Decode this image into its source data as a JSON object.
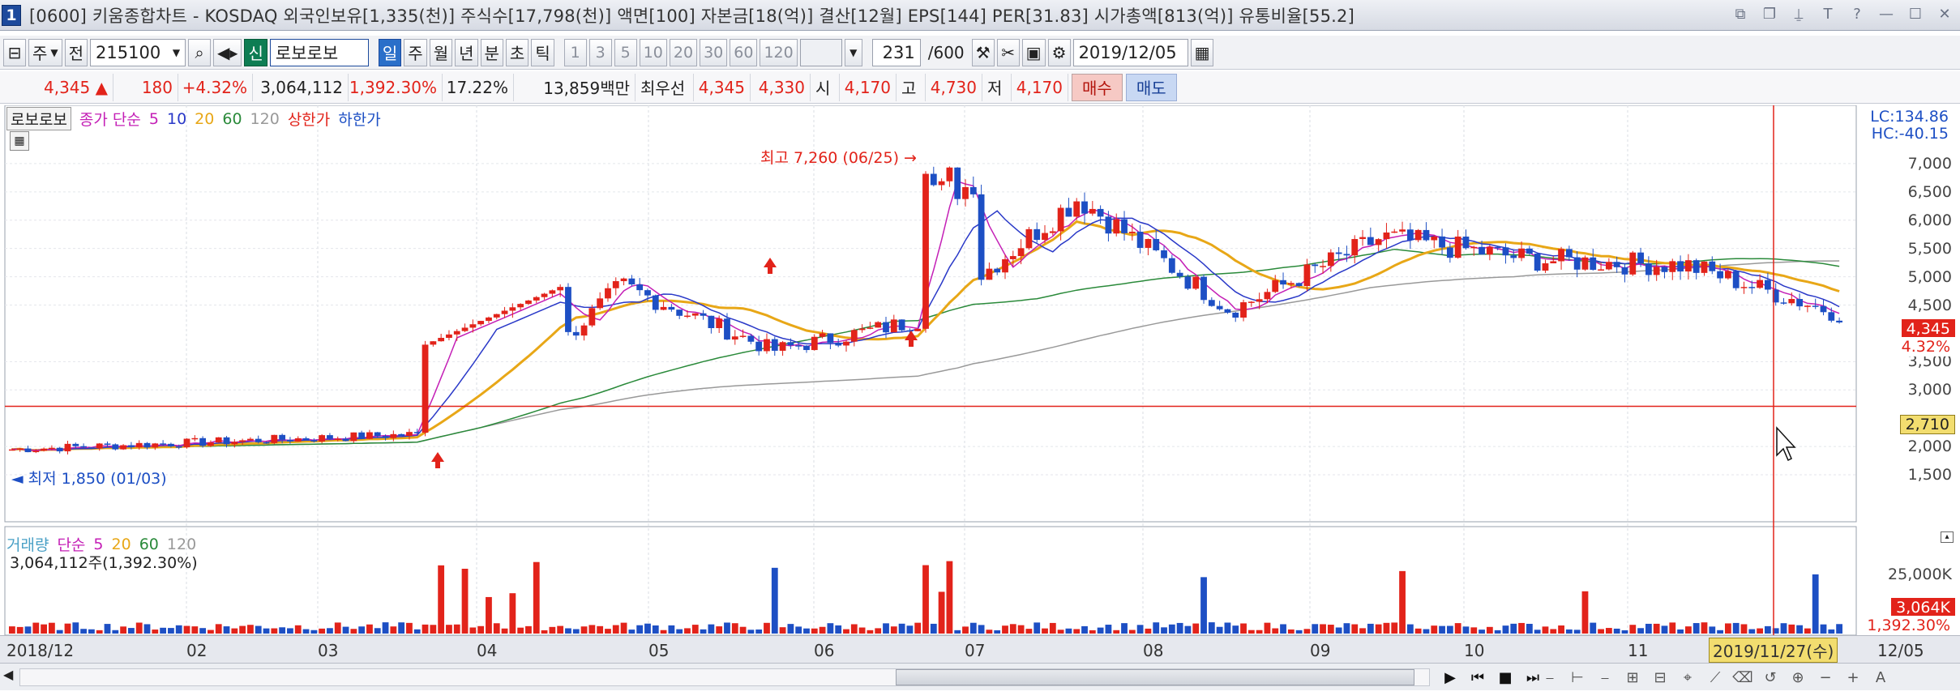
{
  "window": {
    "badge": "1",
    "title": "[0600] 키움종합차트 - KOSDAQ 외국인보유[1,335(천)] 주식수[17,798(천)] 액면[100] 자본금[18(억)] 결산[12월] EPS[144] PER[31.83] 시가총액[813(억)] 유통비율[55.2]"
  },
  "toolbar": {
    "period_sel": "주",
    "prev_label": "전",
    "code": "215100",
    "new_label": "신",
    "stock_name": "로보로보",
    "periods": [
      "일",
      "주",
      "월",
      "년",
      "분",
      "초",
      "틱"
    ],
    "active_period": "일",
    "minute_values": [
      "1",
      "3",
      "5",
      "10",
      "20",
      "30",
      "60",
      "120"
    ],
    "count": "231",
    "total": "/600",
    "date": "2019/12/05"
  },
  "quote": {
    "price": "4,345 ▲",
    "change": "180",
    "rate": "+4.32%",
    "volume": "3,064,112",
    "vol_rate": "1,392.30%",
    "turnover": "17.22%",
    "amount": "13,859백만",
    "best_label": "최우선",
    "best_ask": "4,345",
    "best_bid": "4,330",
    "open_label": "시",
    "open": "4,170",
    "high_label": "고",
    "high": "4,730",
    "low_label": "저",
    "low": "4,170",
    "buy": "매수",
    "sell": "매도"
  },
  "price_legend": {
    "name": "로보로보",
    "close": "종가 단순",
    "ma": [
      "5",
      "10",
      "20",
      "60",
      "120"
    ],
    "upper": "상한가",
    "lower": "하한가"
  },
  "volume_legend": {
    "name": "거래량",
    "simple": "단순",
    "ma": [
      "5",
      "20",
      "60",
      "120"
    ],
    "value": "3,064,112주(1,392.30%)"
  },
  "annotations": {
    "high": "최고 7,260 (06/25)",
    "low": "최저 1,850 (01/03)"
  },
  "right_axis": {
    "lc": "LC:134.86",
    "hc": "HC:-40.15",
    "ticks": [
      "7,000",
      "6,500",
      "6,000",
      "5,500",
      "5,000",
      "4,500",
      "3,500",
      "3,000",
      "2,000",
      "1,500"
    ],
    "price_tag": "4,345",
    "rate_tag": "4.32%",
    "cross_tag": "2,710",
    "vol_tick": "25,000K",
    "vol_tag": "3,064K",
    "vol_rate_tag": "1,392.30%"
  },
  "dates": {
    "labels": [
      "2018/12",
      "02",
      "03",
      "04",
      "05",
      "06",
      "07",
      "08",
      "09",
      "10",
      "11"
    ],
    "cursor": "2019/11/27(수)",
    "last": "12/05"
  },
  "colors": {
    "up": "#e2231a",
    "down": "#1d4fc4",
    "ma5": "#c41fb6",
    "ma10": "#2a39c8",
    "ma20": "#e8a717",
    "ma60": "#2a8a3a",
    "ma120": "#999999"
  },
  "chart_data": {
    "type": "candlestick",
    "title": "",
    "ylabel": "",
    "ylim": [
      1300,
      7600
    ],
    "highest": {
      "value": 7260,
      "date": "06/25"
    },
    "lowest": {
      "value": 1850,
      "date": "01/03"
    },
    "crosshair_value": 2710,
    "series": [
      {
        "name": "close",
        "months": [
          "2018/12",
          "01",
          "02",
          "03",
          "04",
          "05",
          "06",
          "07",
          "08",
          "09",
          "10",
          "11",
          "12/05"
        ],
        "values": [
          1950,
          2050,
          2150,
          2250,
          4850,
          3700,
          4250,
          6400,
          4400,
          5700,
          5300,
          5200,
          4345
        ]
      }
    ]
  }
}
